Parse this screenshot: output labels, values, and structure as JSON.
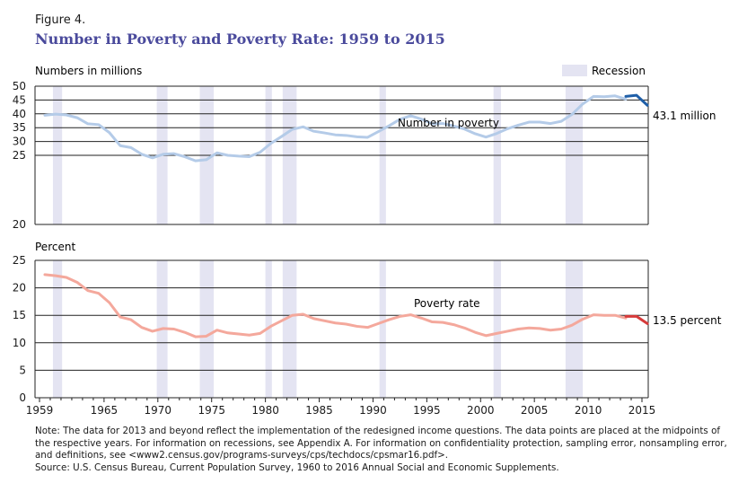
{
  "figure_label": "Figure 4.",
  "title": "Number in Poverty and Poverty Rate: 1959 to 2015",
  "legend": {
    "recession_label": "Recession"
  },
  "note": "Note: The data for 2013 and beyond reflect the implementation of the redesigned income questions. The data points are placed at the midpoints of the respective years. For information on recessions, see Appendix A. For information on confidentiality protection, sampling error, nonsampling error, and definitions, see <www2.census.gov/programs-surveys/cps/techdocs/cpsmar16.pdf>.",
  "source": "Source: U.S. Census Bureau, Current Population Survey, 1960 to 2016 Annual Social and Economic Supplements.",
  "colors": {
    "recession": "#e4e4f2",
    "number_line": "#b4cbe8",
    "number_line_redesign": "#1f5fa8",
    "rate_line": "#f4a89c",
    "rate_line_redesign": "#d63a3a",
    "grid": "#222222"
  },
  "chart_data": [
    {
      "type": "line",
      "ylabel": "Numbers in millions",
      "ylim": [
        0,
        50
      ],
      "ytick_labels": [
        "",
        "",
        "",
        "",
        "",
        "25",
        "30",
        "35",
        "40",
        "45",
        "50"
      ],
      "ytick_values": [
        25,
        30,
        35,
        40,
        45,
        50
      ],
      "xlim": [
        1959,
        2015
      ],
      "recessions": [
        [
          1960.25,
          1961.1
        ],
        [
          1969.9,
          1970.9
        ],
        [
          1973.9,
          1975.2
        ],
        [
          1980.0,
          1980.6
        ],
        [
          1981.6,
          1982.9
        ],
        [
          1990.6,
          1991.2
        ],
        [
          2001.2,
          2001.9
        ],
        [
          2007.9,
          2009.5
        ]
      ],
      "series": [
        {
          "name": "Number in poverty",
          "x": [
            1959,
            1960,
            1961,
            1962,
            1963,
            1964,
            1965,
            1966,
            1967,
            1968,
            1969,
            1970,
            1971,
            1972,
            1973,
            1974,
            1975,
            1976,
            1977,
            1978,
            1979,
            1980,
            1981,
            1982,
            1983,
            1984,
            1985,
            1986,
            1987,
            1988,
            1989,
            1990,
            1991,
            1992,
            1993,
            1994,
            1995,
            1996,
            1997,
            1998,
            1999,
            2000,
            2001,
            2002,
            2003,
            2004,
            2005,
            2006,
            2007,
            2008,
            2009,
            2010,
            2011,
            2012,
            2013
          ],
          "values": [
            39.5,
            39.9,
            39.6,
            38.6,
            36.4,
            36.1,
            33.2,
            28.5,
            27.8,
            25.4,
            24.1,
            25.4,
            25.6,
            24.5,
            23.0,
            23.4,
            25.9,
            25.0,
            24.7,
            24.5,
            26.1,
            29.3,
            31.8,
            34.4,
            35.3,
            33.7,
            33.1,
            32.4,
            32.2,
            31.7,
            31.5,
            33.6,
            35.7,
            38.0,
            39.3,
            38.1,
            36.4,
            36.5,
            35.6,
            34.5,
            32.8,
            31.6,
            32.9,
            34.6,
            35.9,
            37.0,
            37.0,
            36.5,
            37.3,
            39.8,
            43.6,
            46.3,
            46.2,
            46.5,
            45.3
          ]
        },
        {
          "name": "",
          "x": [
            2013,
            2014,
            2015
          ],
          "values": [
            46.3,
            46.7,
            43.1
          ]
        }
      ],
      "annotations": [
        "Number in poverty",
        "43.1 million"
      ]
    },
    {
      "type": "line",
      "ylabel": "Percent",
      "ylim": [
        0,
        25
      ],
      "ytick_labels": [
        "0",
        "5",
        "10",
        "15",
        "20",
        "25"
      ],
      "ytick_values": [
        0,
        5,
        10,
        15,
        20,
        25
      ],
      "xlim": [
        1959,
        2015
      ],
      "xtick_labels": [
        "1959",
        "1965",
        "1970",
        "1975",
        "1980",
        "1985",
        "1990",
        "1995",
        "2000",
        "2005",
        "2010",
        "2015"
      ],
      "xtick_values": [
        1959,
        1965,
        1970,
        1975,
        1980,
        1985,
        1990,
        1995,
        2000,
        2005,
        2010,
        2015
      ],
      "recessions": [
        [
          1960.25,
          1961.1
        ],
        [
          1969.9,
          1970.9
        ],
        [
          1973.9,
          1975.2
        ],
        [
          1980.0,
          1980.6
        ],
        [
          1981.6,
          1982.9
        ],
        [
          1990.6,
          1991.2
        ],
        [
          2001.2,
          2001.9
        ],
        [
          2007.9,
          2009.5
        ]
      ],
      "series": [
        {
          "name": "Poverty rate",
          "x": [
            1959,
            1960,
            1961,
            1962,
            1963,
            1964,
            1965,
            1966,
            1967,
            1968,
            1969,
            1970,
            1971,
            1972,
            1973,
            1974,
            1975,
            1976,
            1977,
            1978,
            1979,
            1980,
            1981,
            1982,
            1983,
            1984,
            1985,
            1986,
            1987,
            1988,
            1989,
            1990,
            1991,
            1992,
            1993,
            1994,
            1995,
            1996,
            1997,
            1998,
            1999,
            2000,
            2001,
            2002,
            2003,
            2004,
            2005,
            2006,
            2007,
            2008,
            2009,
            2010,
            2011,
            2012,
            2013
          ],
          "values": [
            22.4,
            22.2,
            21.9,
            21.0,
            19.5,
            19.0,
            17.3,
            14.7,
            14.2,
            12.8,
            12.1,
            12.6,
            12.5,
            11.9,
            11.1,
            11.2,
            12.3,
            11.8,
            11.6,
            11.4,
            11.7,
            13.0,
            14.0,
            15.0,
            15.2,
            14.4,
            14.0,
            13.6,
            13.4,
            13.0,
            12.8,
            13.5,
            14.2,
            14.8,
            15.1,
            14.5,
            13.8,
            13.7,
            13.3,
            12.7,
            11.9,
            11.3,
            11.7,
            12.1,
            12.5,
            12.7,
            12.6,
            12.3,
            12.5,
            13.2,
            14.3,
            15.1,
            15.0,
            15.0,
            14.5
          ]
        },
        {
          "name": "",
          "x": [
            2013,
            2014,
            2015
          ],
          "values": [
            14.8,
            14.8,
            13.5
          ]
        }
      ],
      "annotations": [
        "Poverty rate",
        "13.5 percent"
      ]
    }
  ]
}
